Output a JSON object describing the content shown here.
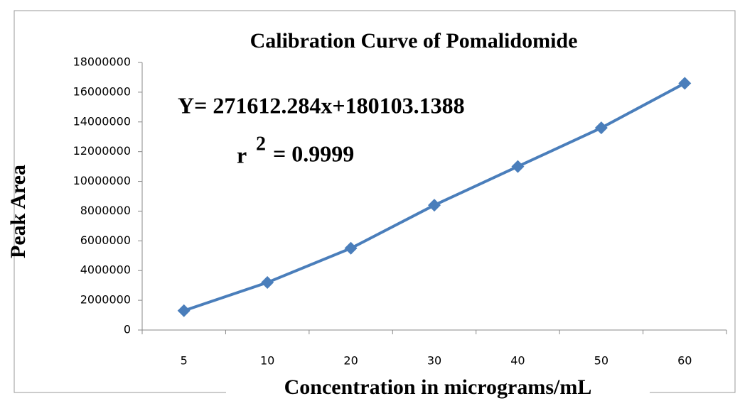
{
  "chart_data": {
    "type": "line",
    "title": "Calibration Curve of Pomalidomide",
    "x_label": "Concentration in micrograms/mL",
    "y_label": "Peak Area",
    "annotations": [
      "Y= 271612.284x+180103.1388",
      "r",
      "2",
      "= 0.9999"
    ],
    "categories": [
      "5",
      "10",
      "20",
      "30",
      "40",
      "50",
      "60"
    ],
    "series": [
      {
        "name": "Peak Area",
        "color": "#4a7ebb",
        "values": [
          1300000,
          3200000,
          5500000,
          8400000,
          11000000,
          13600000,
          16600000
        ]
      }
    ],
    "ylim": [
      0,
      18000000
    ],
    "yticks": [
      0,
      2000000,
      4000000,
      6000000,
      8000000,
      10000000,
      12000000,
      14000000,
      16000000,
      18000000
    ],
    "grid": false
  }
}
